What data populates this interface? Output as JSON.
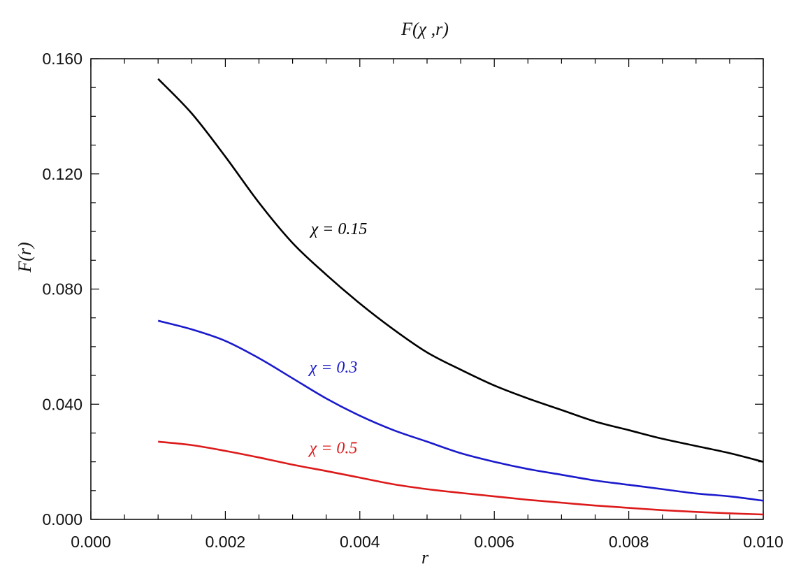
{
  "chart_data": {
    "type": "line",
    "title": "F(χ ,r)",
    "xlabel": "r",
    "ylabel": "F(r)",
    "xlim": [
      0.0,
      0.01
    ],
    "ylim": [
      0.0,
      0.16
    ],
    "x_ticks": [
      "0.000",
      "0.002",
      "0.004",
      "0.006",
      "0.008",
      "0.010"
    ],
    "y_ticks": [
      "0.000",
      "0.040",
      "0.080",
      "0.120",
      "0.160"
    ],
    "grid": false,
    "legend": "none",
    "series": [
      {
        "name": "χ = 0.15",
        "color": "#000000",
        "x": [
          0.001,
          0.0015,
          0.002,
          0.0025,
          0.003,
          0.0035,
          0.004,
          0.0045,
          0.005,
          0.0055,
          0.006,
          0.0065,
          0.007,
          0.0075,
          0.008,
          0.0085,
          0.009,
          0.0095,
          0.01
        ],
        "y": [
          0.153,
          0.141,
          0.126,
          0.11,
          0.096,
          0.085,
          0.075,
          0.066,
          0.058,
          0.052,
          0.0465,
          0.042,
          0.038,
          0.034,
          0.031,
          0.028,
          0.0255,
          0.023,
          0.02
        ]
      },
      {
        "name": "χ = 0.3",
        "color": "#1a1acc",
        "x": [
          0.001,
          0.0015,
          0.002,
          0.0025,
          0.003,
          0.0035,
          0.004,
          0.0045,
          0.005,
          0.0055,
          0.006,
          0.0065,
          0.007,
          0.0075,
          0.008,
          0.0085,
          0.009,
          0.0095,
          0.01
        ],
        "y": [
          0.069,
          0.066,
          0.062,
          0.056,
          0.049,
          0.042,
          0.036,
          0.031,
          0.027,
          0.023,
          0.02,
          0.0175,
          0.0155,
          0.0135,
          0.012,
          0.0105,
          0.009,
          0.008,
          0.0065
        ]
      },
      {
        "name": "χ = 0.5",
        "color": "#dd1a1a",
        "x": [
          0.001,
          0.0015,
          0.002,
          0.0025,
          0.003,
          0.0035,
          0.004,
          0.0045,
          0.005,
          0.0055,
          0.006,
          0.0065,
          0.007,
          0.0075,
          0.008,
          0.0085,
          0.009,
          0.0095,
          0.01
        ],
        "y": [
          0.027,
          0.0258,
          0.0238,
          0.0215,
          0.019,
          0.0168,
          0.0145,
          0.0122,
          0.0105,
          0.0092,
          0.008,
          0.0068,
          0.0058,
          0.0048,
          0.004,
          0.0032,
          0.0026,
          0.0021,
          0.0017
        ]
      }
    ],
    "annotations": [
      {
        "text": "χ = 0.15",
        "x": 0.00327,
        "y": 0.099,
        "color": "#000000"
      },
      {
        "text": "χ = 0.3",
        "x": 0.00325,
        "y": 0.051,
        "color": "#1a1acc"
      },
      {
        "text": "χ = 0.5",
        "x": 0.00325,
        "y": 0.023,
        "color": "#dd1a1a"
      }
    ]
  }
}
